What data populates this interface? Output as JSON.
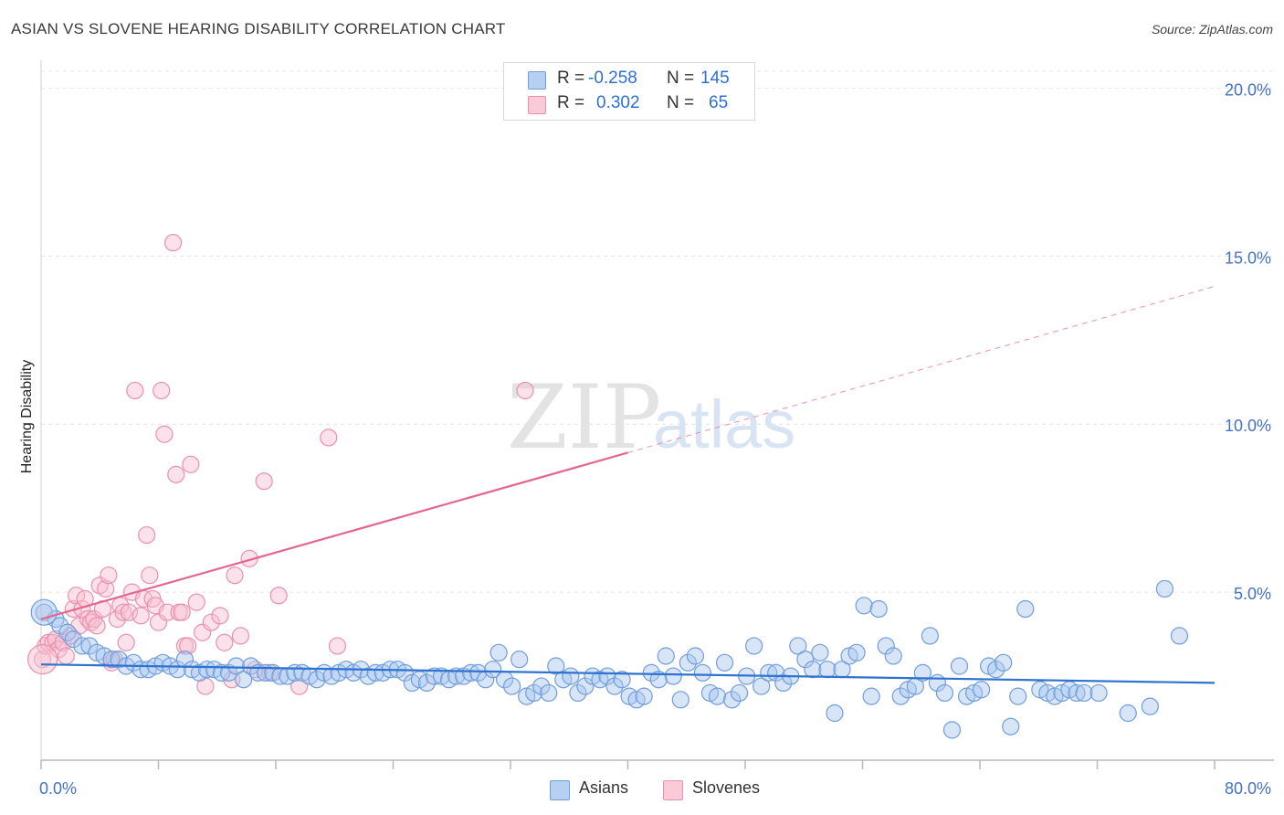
{
  "title": "ASIAN VS SLOVENE HEARING DISABILITY CORRELATION CHART",
  "source": "Source: ZipAtlas.com",
  "watermark": {
    "part1": "ZIP",
    "part2": "atlas"
  },
  "legend_top": {
    "asians": {
      "r_label": "R =",
      "r_value": "-0.258",
      "n_label": "N =",
      "n_value": "145"
    },
    "slovenes": {
      "r_label": "R =",
      "r_value": "0.302",
      "n_label": "N =",
      "n_value": "65"
    }
  },
  "legend_bottom": {
    "asians": "Asians",
    "slovenes": "Slovenes"
  },
  "colors": {
    "asians_fill": "#a9c6ee",
    "asians_stroke": "#6e9de0",
    "asians_line": "#2f73d0",
    "slovenes_fill": "#f7bfd0",
    "slovenes_stroke": "#ec8fae",
    "slovenes_line": "#e5678f",
    "tick_text": "#4472c4"
  },
  "chart_data": {
    "type": "scatter",
    "title": "ASIAN VS SLOVENE HEARING DISABILITY CORRELATION CHART",
    "xlabel": "",
    "ylabel": "Hearing Disability",
    "xlim": [
      0,
      80
    ],
    "ylim": [
      0,
      20.5
    ],
    "x_tick_labels": [
      "0.0%",
      "80.0%"
    ],
    "y_ticks": [
      5,
      10,
      15,
      20
    ],
    "y_tick_labels": [
      "5.0%",
      "10.0%",
      "15.0%",
      "20.0%"
    ],
    "grid": true,
    "series": [
      {
        "name": "Asians",
        "r": -0.258,
        "n": 145,
        "trend": {
          "x": [
            0,
            80
          ],
          "y": [
            2.85,
            2.3
          ],
          "dashed_from": null
        },
        "points": [
          [
            0.2,
            4.4
          ],
          [
            1,
            4.2
          ],
          [
            1.3,
            4.0
          ],
          [
            1.8,
            3.8
          ],
          [
            2.2,
            3.6
          ],
          [
            2.8,
            3.4
          ],
          [
            3.3,
            3.4
          ],
          [
            3.8,
            3.2
          ],
          [
            4.3,
            3.1
          ],
          [
            4.8,
            3.0
          ],
          [
            5.3,
            3.0
          ],
          [
            5.8,
            2.8
          ],
          [
            6.3,
            2.9
          ],
          [
            6.8,
            2.7
          ],
          [
            7.3,
            2.7
          ],
          [
            7.8,
            2.8
          ],
          [
            8.3,
            2.9
          ],
          [
            8.8,
            2.8
          ],
          [
            9.3,
            2.7
          ],
          [
            9.8,
            3.0
          ],
          [
            10.3,
            2.7
          ],
          [
            10.8,
            2.6
          ],
          [
            11.3,
            2.7
          ],
          [
            11.8,
            2.7
          ],
          [
            12.3,
            2.6
          ],
          [
            12.8,
            2.6
          ],
          [
            13.3,
            2.8
          ],
          [
            13.8,
            2.4
          ],
          [
            14.3,
            2.8
          ],
          [
            14.8,
            2.6
          ],
          [
            15.3,
            2.6
          ],
          [
            15.8,
            2.6
          ],
          [
            16.3,
            2.5
          ],
          [
            16.8,
            2.5
          ],
          [
            17.3,
            2.6
          ],
          [
            17.8,
            2.6
          ],
          [
            18.3,
            2.5
          ],
          [
            18.8,
            2.4
          ],
          [
            19.3,
            2.6
          ],
          [
            19.8,
            2.5
          ],
          [
            20.3,
            2.6
          ],
          [
            20.8,
            2.7
          ],
          [
            21.3,
            2.6
          ],
          [
            21.8,
            2.7
          ],
          [
            22.3,
            2.5
          ],
          [
            22.8,
            2.6
          ],
          [
            23.3,
            2.6
          ],
          [
            23.8,
            2.7
          ],
          [
            24.3,
            2.7
          ],
          [
            24.8,
            2.6
          ],
          [
            25.3,
            2.3
          ],
          [
            25.8,
            2.4
          ],
          [
            26.3,
            2.3
          ],
          [
            26.8,
            2.5
          ],
          [
            27.3,
            2.5
          ],
          [
            27.8,
            2.4
          ],
          [
            28.3,
            2.5
          ],
          [
            28.8,
            2.5
          ],
          [
            29.3,
            2.6
          ],
          [
            29.8,
            2.6
          ],
          [
            30.3,
            2.4
          ],
          [
            30.8,
            2.7
          ],
          [
            31.2,
            3.2
          ],
          [
            31.6,
            2.4
          ],
          [
            32.1,
            2.2
          ],
          [
            32.6,
            3.0
          ],
          [
            33.1,
            1.9
          ],
          [
            33.6,
            2.0
          ],
          [
            34.1,
            2.2
          ],
          [
            34.6,
            2.0
          ],
          [
            35.1,
            2.8
          ],
          [
            35.6,
            2.4
          ],
          [
            36.1,
            2.5
          ],
          [
            36.6,
            2.0
          ],
          [
            37.1,
            2.2
          ],
          [
            37.6,
            2.5
          ],
          [
            38.1,
            2.4
          ],
          [
            38.6,
            2.5
          ],
          [
            39.1,
            2.2
          ],
          [
            39.6,
            2.4
          ],
          [
            40.1,
            1.9
          ],
          [
            40.6,
            1.8
          ],
          [
            41.1,
            1.9
          ],
          [
            41.6,
            2.6
          ],
          [
            42.1,
            2.4
          ],
          [
            42.6,
            3.1
          ],
          [
            43.1,
            2.5
          ],
          [
            43.6,
            1.8
          ],
          [
            44.1,
            2.9
          ],
          [
            44.6,
            3.1
          ],
          [
            45.1,
            2.6
          ],
          [
            45.6,
            2.0
          ],
          [
            46.1,
            1.9
          ],
          [
            46.6,
            2.9
          ],
          [
            47.1,
            1.8
          ],
          [
            47.6,
            2.0
          ],
          [
            48.1,
            2.5
          ],
          [
            48.6,
            3.4
          ],
          [
            49.1,
            2.2
          ],
          [
            49.6,
            2.6
          ],
          [
            50.1,
            2.6
          ],
          [
            50.6,
            2.3
          ],
          [
            51.1,
            2.5
          ],
          [
            51.6,
            3.4
          ],
          [
            52.1,
            3.0
          ],
          [
            52.6,
            2.7
          ],
          [
            53.1,
            3.2
          ],
          [
            53.6,
            2.7
          ],
          [
            54.1,
            1.4
          ],
          [
            54.6,
            2.7
          ],
          [
            55.1,
            3.1
          ],
          [
            55.6,
            3.2
          ],
          [
            56.1,
            4.6
          ],
          [
            56.6,
            1.9
          ],
          [
            57.1,
            4.5
          ],
          [
            57.6,
            3.4
          ],
          [
            58.1,
            3.1
          ],
          [
            58.6,
            1.9
          ],
          [
            59.1,
            2.1
          ],
          [
            59.6,
            2.2
          ],
          [
            60.1,
            2.6
          ],
          [
            60.6,
            3.7
          ],
          [
            61.1,
            2.3
          ],
          [
            61.6,
            2.0
          ],
          [
            62.1,
            0.9
          ],
          [
            62.6,
            2.8
          ],
          [
            63.1,
            1.9
          ],
          [
            63.6,
            2.0
          ],
          [
            64.1,
            2.1
          ],
          [
            64.6,
            2.8
          ],
          [
            65.1,
            2.7
          ],
          [
            65.6,
            2.9
          ],
          [
            66.1,
            1.0
          ],
          [
            66.6,
            1.9
          ],
          [
            67.1,
            4.5
          ],
          [
            68.1,
            2.1
          ],
          [
            68.6,
            2.0
          ],
          [
            69.1,
            1.9
          ],
          [
            69.6,
            2.0
          ],
          [
            70.1,
            2.1
          ],
          [
            70.6,
            2.0
          ],
          [
            71.1,
            2.0
          ],
          [
            72.1,
            2.0
          ],
          [
            74.1,
            1.4
          ],
          [
            75.6,
            1.6
          ],
          [
            76.6,
            5.1
          ],
          [
            77.6,
            3.7
          ]
        ]
      },
      {
        "name": "Slovenes",
        "r": 0.302,
        "n": 65,
        "trend": {
          "x": [
            0,
            80
          ],
          "y": [
            4.2,
            14.1
          ],
          "dashed_from": 40
        },
        "points": [
          [
            0.1,
            3.0
          ],
          [
            0.3,
            3.4
          ],
          [
            0.5,
            3.5
          ],
          [
            0.8,
            3.5
          ],
          [
            1.0,
            3.6
          ],
          [
            1.2,
            3.3
          ],
          [
            1.5,
            3.5
          ],
          [
            1.7,
            3.1
          ],
          [
            2.0,
            3.7
          ],
          [
            2.2,
            4.5
          ],
          [
            2.4,
            4.9
          ],
          [
            2.6,
            4.0
          ],
          [
            2.8,
            4.5
          ],
          [
            3.0,
            4.8
          ],
          [
            3.2,
            4.2
          ],
          [
            3.4,
            4.1
          ],
          [
            3.6,
            4.2
          ],
          [
            3.8,
            4.0
          ],
          [
            4.0,
            5.2
          ],
          [
            4.2,
            4.5
          ],
          [
            4.4,
            5.1
          ],
          [
            4.6,
            5.5
          ],
          [
            4.8,
            2.9
          ],
          [
            5.0,
            3.0
          ],
          [
            5.2,
            4.2
          ],
          [
            5.4,
            4.6
          ],
          [
            5.6,
            4.4
          ],
          [
            5.8,
            3.5
          ],
          [
            6.0,
            4.4
          ],
          [
            6.2,
            5.0
          ],
          [
            6.4,
            11.0
          ],
          [
            6.8,
            4.3
          ],
          [
            7.0,
            4.8
          ],
          [
            7.2,
            6.7
          ],
          [
            7.4,
            5.5
          ],
          [
            7.6,
            4.8
          ],
          [
            7.8,
            4.6
          ],
          [
            8.0,
            4.1
          ],
          [
            8.2,
            11.0
          ],
          [
            8.4,
            9.7
          ],
          [
            8.6,
            4.4
          ],
          [
            9.0,
            15.4
          ],
          [
            9.2,
            8.5
          ],
          [
            9.4,
            4.4
          ],
          [
            9.6,
            4.4
          ],
          [
            9.8,
            3.4
          ],
          [
            10.0,
            3.4
          ],
          [
            10.2,
            8.8
          ],
          [
            10.6,
            4.7
          ],
          [
            11.0,
            3.8
          ],
          [
            11.2,
            2.2
          ],
          [
            11.6,
            4.1
          ],
          [
            12.2,
            4.3
          ],
          [
            12.5,
            3.5
          ],
          [
            13.0,
            2.4
          ],
          [
            13.2,
            5.5
          ],
          [
            13.6,
            3.7
          ],
          [
            14.2,
            6.0
          ],
          [
            14.6,
            2.7
          ],
          [
            15.2,
            8.3
          ],
          [
            15.6,
            2.6
          ],
          [
            16.2,
            4.9
          ],
          [
            17.6,
            2.2
          ],
          [
            19.6,
            9.6
          ],
          [
            20.2,
            3.4
          ],
          [
            33.0,
            11.0
          ]
        ]
      }
    ]
  }
}
